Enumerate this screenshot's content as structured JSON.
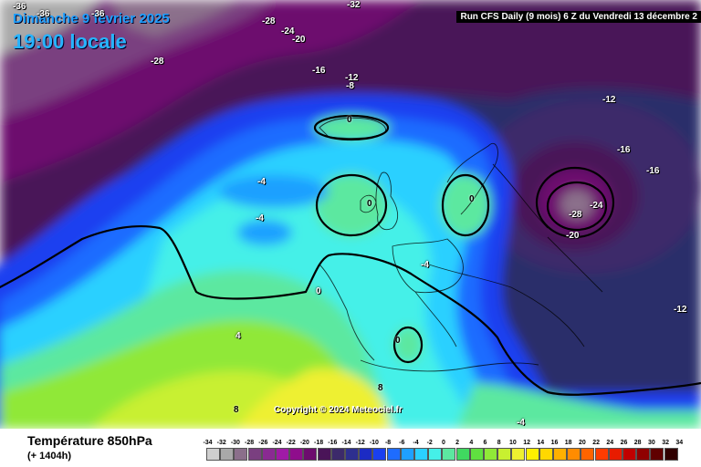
{
  "header": {
    "date": "Dimanche 9 février 2025",
    "time": "19:00 locale",
    "run": "Run CFS Daily (9 mois) 6 Z du Vendredi 13 décembre 2"
  },
  "map": {
    "copyright": "Copyright © 2024 Meteociel.fr",
    "isotherm_labels": [
      {
        "text": "-36",
        "pos": "top-left corner"
      },
      {
        "text": "-36",
        "pos": "top-left"
      },
      {
        "text": "-36",
        "pos": "top-left"
      },
      {
        "text": "-32",
        "pos": "top"
      },
      {
        "text": "-28",
        "pos": "top"
      },
      {
        "text": "-24",
        "pos": "top"
      },
      {
        "text": "-20",
        "pos": "top"
      },
      {
        "text": "-28",
        "pos": "north-west Atlantic"
      },
      {
        "text": "-16",
        "pos": "Greenland"
      },
      {
        "text": "-12",
        "pos": "north of Iceland"
      },
      {
        "text": "-8",
        "pos": "north of Iceland"
      },
      {
        "text": "0",
        "pos": "Iceland"
      },
      {
        "text": "-12",
        "pos": "Scandinavia"
      },
      {
        "text": "-16",
        "pos": "Russia"
      },
      {
        "text": "-16",
        "pos": "Russia"
      },
      {
        "text": "-24",
        "pos": "Russia low"
      },
      {
        "text": "-28",
        "pos": "Russia low"
      },
      {
        "text": "-20",
        "pos": "Russia low"
      },
      {
        "text": "-4",
        "pos": "mid Atlantic"
      },
      {
        "text": "-4",
        "pos": "mid Atlantic"
      },
      {
        "text": "0",
        "pos": "Ireland"
      },
      {
        "text": "0",
        "pos": "North Sea"
      },
      {
        "text": "-4",
        "pos": "North Sea"
      },
      {
        "text": "0",
        "pos": "Bay of Biscay"
      },
      {
        "text": "4",
        "pos": "Azores"
      },
      {
        "text": "0",
        "pos": "Mediterranean"
      },
      {
        "text": "8",
        "pos": "North Africa"
      },
      {
        "text": "8",
        "pos": "North Africa"
      },
      {
        "text": "-4",
        "pos": "Turkey"
      },
      {
        "text": "-12",
        "pos": "east Russia"
      }
    ]
  },
  "legend": {
    "variable": "Température 850hPa",
    "forecast_hour": "(+ 1404h)",
    "unit_values": [
      "-34",
      "-32",
      "-30",
      "-28",
      "-26",
      "-24",
      "-22",
      "-20",
      "-18",
      "-16",
      "-14",
      "-12",
      "-10",
      "-8",
      "-6",
      "-4",
      "-2",
      "0",
      "2",
      "4",
      "6",
      "8",
      "10",
      "12",
      "14",
      "16",
      "18",
      "20",
      "22",
      "24",
      "26",
      "28",
      "30",
      "32",
      "34"
    ],
    "colors": [
      "#cfcfcf",
      "#a9a9a9",
      "#8b6f8b",
      "#7a3f80",
      "#8a2a92",
      "#a01aa6",
      "#8f0d8c",
      "#6d0c6e",
      "#4a1458",
      "#3c2a6a",
      "#2d2f8f",
      "#1c2bc4",
      "#1a40f0",
      "#1e6cff",
      "#1fa0ff",
      "#2ad0ff",
      "#45f0e8",
      "#5ce8a0",
      "#40d860",
      "#60e040",
      "#90e838",
      "#c8f030",
      "#eef030",
      "#fff000",
      "#ffd800",
      "#ffb000",
      "#ff8c00",
      "#ff6400",
      "#ff3c00",
      "#e81c00",
      "#c00000",
      "#900000",
      "#600000",
      "#300000"
    ]
  }
}
